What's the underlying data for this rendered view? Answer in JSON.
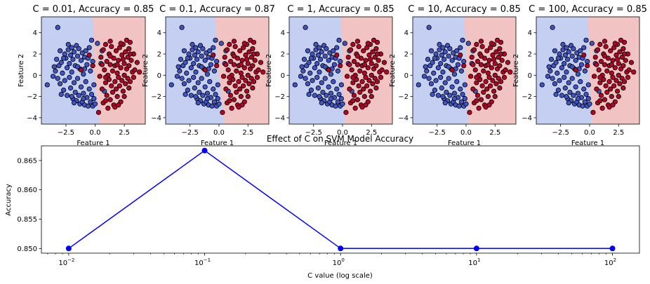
{
  "colors": {
    "region_neg": "#c5cff2",
    "region_pos": "#f1c3c2",
    "class_neg": "#4054c8",
    "class_pos": "#b40426",
    "line": "#0000ff"
  },
  "chart_data": [
    {
      "type": "scatter",
      "title": "C = 0.01, Accuracy = 0.85",
      "xlabel": "Feature 1",
      "ylabel": "Feature 2",
      "xlim": [
        -4.6,
        4.3
      ],
      "ylim": [
        -4.6,
        5.5
      ],
      "xticks": [
        -2.5,
        0.0,
        2.5
      ],
      "xtick_labels": [
        "−2.5",
        "0.0",
        "2.5"
      ],
      "yticks": [
        -4,
        -2,
        0,
        2,
        4
      ],
      "ytick_labels": [
        "−4",
        "−2",
        "0",
        "2",
        "4"
      ],
      "boundary": [
        [
          -0.2,
          5.5
        ],
        [
          -0.1,
          3.0
        ],
        [
          -0.15,
          1.0
        ],
        [
          0.05,
          -1.0
        ],
        [
          0.3,
          -3.0
        ],
        [
          0.35,
          -4.6
        ]
      ]
    },
    {
      "type": "scatter",
      "title": "C = 0.1, Accuracy = 0.87",
      "xlabel": "Feature 1",
      "ylabel": "Feature 2",
      "xlim": [
        -4.6,
        4.3
      ],
      "ylim": [
        -4.6,
        5.5
      ],
      "xticks": [
        -2.5,
        0.0,
        2.5
      ],
      "xtick_labels": [
        "−2.5",
        "0.0",
        "2.5"
      ],
      "yticks": [
        -4,
        -2,
        0,
        2,
        4
      ],
      "ytick_labels": [
        "−4",
        "−2",
        "0",
        "2",
        "4"
      ],
      "boundary": [
        [
          -0.35,
          5.5
        ],
        [
          -0.2,
          3.0
        ],
        [
          -0.1,
          1.0
        ],
        [
          0.1,
          -1.0
        ],
        [
          0.35,
          -3.0
        ],
        [
          0.45,
          -4.6
        ]
      ]
    },
    {
      "type": "scatter",
      "title": "C = 1, Accuracy = 0.85",
      "xlabel": "Feature 1",
      "ylabel": "Feature 2",
      "xlim": [
        -4.6,
        4.3
      ],
      "ylim": [
        -4.6,
        5.5
      ],
      "xticks": [
        -2.5,
        0.0,
        2.5
      ],
      "xtick_labels": [
        "−2.5",
        "0.0",
        "2.5"
      ],
      "yticks": [
        -4,
        -2,
        0,
        2,
        4
      ],
      "ytick_labels": [
        "−4",
        "−2",
        "0",
        "2",
        "4"
      ],
      "boundary": [
        [
          -0.15,
          5.5
        ],
        [
          -0.05,
          3.0
        ],
        [
          -0.05,
          1.0
        ],
        [
          0.0,
          -1.0
        ],
        [
          0.15,
          -3.0
        ],
        [
          0.2,
          -4.6
        ]
      ]
    },
    {
      "type": "scatter",
      "title": "C = 10, Accuracy = 0.85",
      "xlabel": "Feature 1",
      "ylabel": "Feature 2",
      "xlim": [
        -4.6,
        4.3
      ],
      "ylim": [
        -4.6,
        5.5
      ],
      "xticks": [
        -2.5,
        0.0,
        2.5
      ],
      "xtick_labels": [
        "−2.5",
        "0.0",
        "2.5"
      ],
      "yticks": [
        -4,
        -2,
        0,
        2,
        4
      ],
      "ytick_labels": [
        "−4",
        "−2",
        "0",
        "2",
        "4"
      ],
      "boundary": [
        [
          -0.15,
          5.5
        ],
        [
          -0.05,
          3.0
        ],
        [
          -0.05,
          1.0
        ],
        [
          0.0,
          -1.0
        ],
        [
          0.15,
          -3.0
        ],
        [
          0.2,
          -4.6
        ]
      ]
    },
    {
      "type": "scatter",
      "title": "C = 100, Accuracy = 0.85",
      "xlabel": "Feature 1",
      "ylabel": "Feature 2",
      "xlim": [
        -4.6,
        4.3
      ],
      "ylim": [
        -4.6,
        5.5
      ],
      "xticks": [
        -2.5,
        0.0,
        2.5
      ],
      "xtick_labels": [
        "−2.5",
        "0.0",
        "2.5"
      ],
      "yticks": [
        -4,
        -2,
        0,
        2,
        4
      ],
      "ytick_labels": [
        "−4",
        "−2",
        "0",
        "2",
        "4"
      ],
      "boundary": [
        [
          -0.15,
          5.5
        ],
        [
          -0.05,
          3.0
        ],
        [
          -0.05,
          1.0
        ],
        [
          0.0,
          -1.0
        ],
        [
          0.15,
          -3.0
        ],
        [
          0.2,
          -4.6
        ]
      ]
    },
    {
      "type": "line",
      "title": "Effect of C on SVM Model Accuracy",
      "xlabel": "C value (log scale)",
      "ylabel": "Accuracy",
      "xscale": "log",
      "x": [
        0.01,
        0.1,
        1,
        10,
        100
      ],
      "y": [
        0.85,
        0.8667,
        0.85,
        0.85,
        0.85
      ],
      "xlim": [
        0.0063,
        158
      ],
      "ylim": [
        0.8492,
        0.8675
      ],
      "xticks": [
        0.01,
        0.1,
        1,
        10,
        100
      ],
      "xtick_labels": [
        [
          "10",
          "−2"
        ],
        [
          "10",
          "−1"
        ],
        [
          "10",
          "0"
        ],
        [
          "10",
          "1"
        ],
        [
          "10",
          "2"
        ]
      ],
      "yticks": [
        0.85,
        0.855,
        0.86,
        0.865
      ],
      "ytick_labels": [
        "0.850",
        "0.855",
        "0.860",
        "0.865"
      ],
      "marker": "o",
      "grid": false
    }
  ],
  "scatter_points": {
    "neg": [
      [
        -3.2,
        4.5
      ],
      [
        -4.1,
        -0.9
      ],
      [
        -3.6,
        -0.1
      ],
      [
        -3.4,
        0.4
      ],
      [
        -3.2,
        -0.3
      ],
      [
        -3.1,
        0.9
      ],
      [
        -3.0,
        -0.8
      ],
      [
        -2.9,
        1.2
      ],
      [
        -2.8,
        0.2
      ],
      [
        -2.7,
        -1.4
      ],
      [
        -2.6,
        2.0
      ],
      [
        -2.6,
        -0.5
      ],
      [
        -2.5,
        1.6
      ],
      [
        -2.4,
        0.7
      ],
      [
        -2.4,
        -1.9
      ],
      [
        -2.3,
        2.4
      ],
      [
        -2.2,
        -0.2
      ],
      [
        -2.2,
        1.1
      ],
      [
        -2.1,
        -1.2
      ],
      [
        -2.0,
        2.6
      ],
      [
        -2.0,
        0.3
      ],
      [
        -1.9,
        -2.2
      ],
      [
        -1.9,
        1.5
      ],
      [
        -1.8,
        -0.7
      ],
      [
        -1.8,
        2.2
      ],
      [
        -1.7,
        0.9
      ],
      [
        -1.7,
        -1.6
      ],
      [
        -1.6,
        2.8
      ],
      [
        -1.6,
        -2.4
      ],
      [
        -1.5,
        1.8
      ],
      [
        -1.5,
        -0.3
      ],
      [
        -1.4,
        -1.9
      ],
      [
        -1.4,
        2.5
      ],
      [
        -1.3,
        0.6
      ],
      [
        -1.3,
        -2.7
      ],
      [
        -1.2,
        1.4
      ],
      [
        -1.2,
        -1.1
      ],
      [
        -1.1,
        2.1
      ],
      [
        -1.1,
        -2.5
      ],
      [
        -1.0,
        0.1
      ],
      [
        -1.0,
        -1.7
      ],
      [
        -0.9,
        1.7
      ],
      [
        -0.9,
        -2.8
      ],
      [
        -0.8,
        -0.6
      ],
      [
        -0.8,
        2.3
      ],
      [
        -0.7,
        -2.1
      ],
      [
        -0.7,
        1.0
      ],
      [
        -0.6,
        -2.9
      ],
      [
        -0.6,
        1.6
      ],
      [
        -0.5,
        -1.3
      ],
      [
        -0.5,
        2.6
      ],
      [
        -0.4,
        -2.5
      ],
      [
        -0.4,
        0.4
      ],
      [
        -0.3,
        -1.8
      ],
      [
        -0.3,
        3.3
      ],
      [
        -0.2,
        -2.9
      ],
      [
        -0.2,
        1.3
      ],
      [
        -0.1,
        -0.9
      ],
      [
        -0.1,
        -2.2
      ],
      [
        0.0,
        -2.7
      ],
      [
        -2.9,
        -1.8
      ],
      [
        -3.3,
        1.5
      ],
      [
        -2.0,
        -2.0
      ],
      [
        -1.5,
        0.8
      ],
      [
        -2.3,
        2.9
      ],
      [
        -1.0,
        -2.2
      ],
      [
        -3.5,
        0.8
      ],
      [
        -2.7,
        1.6
      ],
      [
        -1.8,
        -2.6
      ],
      [
        -0.9,
        0.6
      ],
      [
        0.5,
        1.1
      ],
      [
        0.8,
        -1.5
      ],
      [
        0.2,
        3.0
      ],
      [
        -3.0,
        2.3
      ],
      [
        -2.1,
        1.9
      ],
      [
        0.6,
        2.3
      ]
    ],
    "pos": [
      [
        0.3,
        -3.5
      ],
      [
        0.4,
        -0.1
      ],
      [
        0.5,
        1.7
      ],
      [
        0.6,
        -1.3
      ],
      [
        0.7,
        2.4
      ],
      [
        0.7,
        -2.6
      ],
      [
        0.8,
        0.5
      ],
      [
        0.9,
        -0.7
      ],
      [
        0.9,
        2.9
      ],
      [
        1.0,
        1.3
      ],
      [
        1.0,
        -1.9
      ],
      [
        1.1,
        0.0
      ],
      [
        1.1,
        -3.1
      ],
      [
        1.2,
        2.0
      ],
      [
        1.2,
        -0.4
      ],
      [
        1.3,
        1.0
      ],
      [
        1.3,
        -2.3
      ],
      [
        1.4,
        2.7
      ],
      [
        1.4,
        -1.0
      ],
      [
        1.5,
        0.4
      ],
      [
        1.5,
        -1.6
      ],
      [
        1.6,
        1.6
      ],
      [
        1.6,
        -2.8
      ],
      [
        1.7,
        0.9
      ],
      [
        1.7,
        -0.6
      ],
      [
        1.8,
        2.3
      ],
      [
        1.8,
        -1.3
      ],
      [
        1.9,
        0.2
      ],
      [
        1.9,
        -2.0
      ],
      [
        2.0,
        1.4
      ],
      [
        2.0,
        -0.2
      ],
      [
        2.1,
        2.6
      ],
      [
        2.1,
        -1.0
      ],
      [
        2.2,
        0.7
      ],
      [
        2.2,
        -2.5
      ],
      [
        2.3,
        1.9
      ],
      [
        2.3,
        -0.5
      ],
      [
        2.4,
        2.9
      ],
      [
        2.4,
        -1.5
      ],
      [
        2.5,
        1.1
      ],
      [
        2.5,
        0.0
      ],
      [
        2.6,
        2.2
      ],
      [
        2.6,
        -0.8
      ],
      [
        2.7,
        3.3
      ],
      [
        2.7,
        0.6
      ],
      [
        2.8,
        1.7
      ],
      [
        2.8,
        -0.3
      ],
      [
        2.9,
        2.5
      ],
      [
        2.9,
        0.9
      ],
      [
        3.0,
        3.1
      ],
      [
        3.0,
        -0.6
      ],
      [
        3.1,
        1.4
      ],
      [
        3.2,
        0.3
      ],
      [
        3.3,
        2.0
      ],
      [
        3.4,
        0.5
      ],
      [
        3.6,
        1.2
      ],
      [
        3.8,
        0.3
      ],
      [
        3.0,
        2.0
      ],
      [
        1.3,
        3.2
      ],
      [
        2.2,
        3.0
      ],
      [
        0.9,
        -2.4
      ],
      [
        1.7,
        -3.0
      ],
      [
        2.5,
        -2.0
      ],
      [
        2.0,
        -2.8
      ],
      [
        1.3,
        1.8
      ],
      [
        0.6,
        1.0
      ],
      [
        2.9,
        -1.2
      ],
      [
        3.3,
        -0.2
      ],
      [
        -0.2,
        0.9
      ],
      [
        -1.2,
        0.5
      ],
      [
        -0.5,
        1.9
      ],
      [
        0.9,
        -0.2
      ],
      [
        1.9,
        1.0
      ],
      [
        2.4,
        1.5
      ]
    ]
  }
}
